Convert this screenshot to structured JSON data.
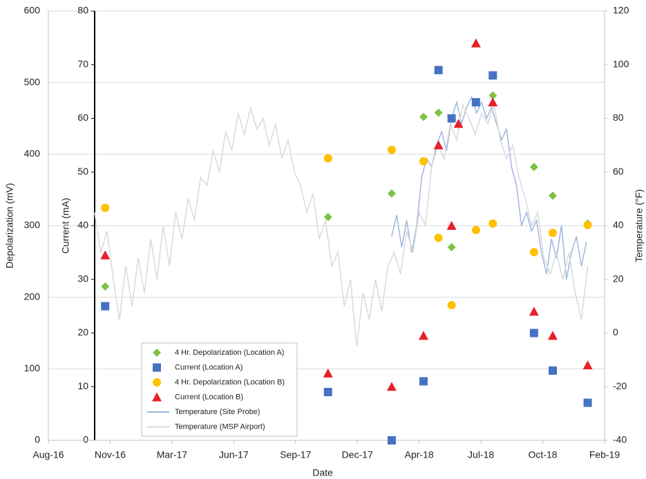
{
  "chart_data": {
    "type": "scatter",
    "x_label": "Date",
    "y_label": "Depolarization (mV)",
    "y2_label": "Current (mA)",
    "y3_label": "Temperature (°F)",
    "xlim": [
      42604,
      43495
    ],
    "xticks": [
      {
        "value": 42604,
        "label": "Aug-16"
      },
      {
        "value": 42703,
        "label": "Nov-16"
      },
      {
        "value": 42802,
        "label": "Mar-17"
      },
      {
        "value": 42901,
        "label": "Jun-17"
      },
      {
        "value": 43000,
        "label": "Sep-17"
      },
      {
        "value": 43099,
        "label": "Dec-17"
      },
      {
        "value": 43198,
        "label": "Apr-18"
      },
      {
        "value": 43297,
        "label": "Jul-18"
      },
      {
        "value": 43396,
        "label": "Oct-18"
      },
      {
        "value": 43495,
        "label": "Feb-19"
      }
    ],
    "ylim": [
      0,
      600
    ],
    "yticks": [
      0,
      100,
      200,
      300,
      400,
      500,
      600
    ],
    "y2lim": [
      0,
      80
    ],
    "y2ticks": [
      0,
      10,
      20,
      30,
      40,
      50,
      60,
      70,
      80
    ],
    "y3lim": [
      -40,
      120
    ],
    "y3ticks": [
      -40,
      -20,
      0,
      20,
      40,
      60,
      80,
      100,
      120
    ],
    "grid": true,
    "legend": "lower left",
    "series": [
      {
        "name": "4 Hr. Depolarization (Location A)",
        "color": "#7dc241",
        "marker": "diamond",
        "axis": "y",
        "x": [
          42695,
          43052,
          43154,
          43205,
          43229,
          43250,
          43316,
          43382,
          43412,
          43468
        ],
        "values": [
          215,
          312,
          345,
          452,
          458,
          270,
          482,
          382,
          342,
          303
        ]
      },
      {
        "name": "Current (Location A)",
        "color": "#4472c4",
        "marker": "square",
        "axis": "y2",
        "x": [
          42695,
          43052,
          43154,
          43205,
          43229,
          43250,
          43289,
          43316,
          43382,
          43412,
          43468
        ],
        "values": [
          25,
          9,
          0,
          11,
          69,
          60,
          63,
          68,
          20,
          13,
          7
        ]
      },
      {
        "name": "4 Hr. Depolarization (Location B)",
        "color": "#ffc000",
        "marker": "circle",
        "axis": "y",
        "x": [
          42695,
          43052,
          43154,
          43205,
          43229,
          43250,
          43289,
          43316,
          43382,
          43412,
          43468
        ],
        "values": [
          325,
          394,
          406,
          390,
          283,
          189,
          294,
          303,
          263,
          290,
          301
        ]
      },
      {
        "name": "Current (Location B)",
        "color": "#e8202a",
        "marker": "triangle",
        "axis": "y2",
        "x": [
          42695,
          43052,
          43154,
          43205,
          43229,
          43250,
          43261,
          43289,
          43316,
          43382,
          43412,
          43468
        ],
        "values": [
          34.5,
          12.5,
          10,
          19.5,
          55,
          40,
          59,
          74,
          63,
          24,
          19.5,
          14
        ]
      },
      {
        "name": "Temperature (Site Probe)",
        "color": "#9db5e0",
        "marker": "line",
        "axis": "y3",
        "x": [
          43154,
          43162,
          43170,
          43178,
          43186,
          43194,
          43202,
          43210,
          43218,
          43226,
          43234,
          43242,
          43250,
          43258,
          43266,
          43274,
          43282,
          43290,
          43298,
          43306,
          43314,
          43322,
          43330,
          43338,
          43346,
          43354,
          43362,
          43370,
          43378,
          43386,
          43394,
          43402,
          43410,
          43418,
          43426,
          43434,
          43442,
          43450,
          43458,
          43466
        ],
        "values": [
          36,
          44,
          32,
          42,
          30,
          40,
          58,
          65,
          62,
          70,
          75,
          68,
          80,
          86,
          78,
          84,
          88,
          82,
          86,
          80,
          84,
          78,
          72,
          76,
          62,
          55,
          40,
          45,
          38,
          42,
          30,
          22,
          35,
          28,
          40,
          20,
          30,
          36,
          25,
          34
        ]
      },
      {
        "name": "Temperature (MSP Airport)",
        "color": "#d9d9d9",
        "marker": "line",
        "axis": "y3",
        "x": [
          42678,
          42688,
          42698,
          42708,
          42718,
          42728,
          42738,
          42748,
          42758,
          42768,
          42778,
          42788,
          42798,
          42808,
          42818,
          42828,
          42838,
          42848,
          42858,
          42868,
          42878,
          42888,
          42898,
          42908,
          42918,
          42928,
          42938,
          42948,
          42958,
          42968,
          42978,
          42988,
          42998,
          43008,
          43018,
          43028,
          43038,
          43048,
          43058,
          43068,
          43078,
          43088,
          43098,
          43108,
          43118,
          43128,
          43138,
          43148,
          43158,
          43168,
          43178,
          43188,
          43198,
          43208,
          43218,
          43228,
          43238,
          43248,
          43258,
          43268,
          43278,
          43288,
          43298,
          43308,
          43318,
          43328,
          43338,
          43348,
          43358,
          43368,
          43378,
          43388,
          43398,
          43408,
          43418,
          43428,
          43438,
          43448,
          43458,
          43468
        ],
        "values": [
          45,
          30,
          38,
          20,
          5,
          25,
          10,
          28,
          15,
          35,
          20,
          40,
          25,
          45,
          35,
          50,
          42,
          58,
          55,
          68,
          60,
          75,
          68,
          82,
          74,
          84,
          76,
          80,
          70,
          78,
          65,
          72,
          60,
          55,
          45,
          52,
          35,
          42,
          25,
          30,
          10,
          20,
          -5,
          15,
          5,
          20,
          8,
          25,
          30,
          22,
          38,
          30,
          45,
          40,
          62,
          70,
          65,
          78,
          72,
          85,
          80,
          74,
          82,
          78,
          85,
          72,
          65,
          70,
          58,
          50,
          40,
          45,
          28,
          22,
          30,
          20,
          30,
          15,
          5,
          25
        ]
      }
    ]
  }
}
